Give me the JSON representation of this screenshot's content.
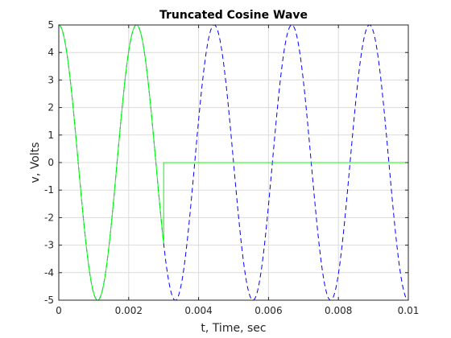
{
  "chart_data": {
    "type": "line",
    "title": "Truncated Cosine Wave",
    "xlabel": "t, Time, sec",
    "ylabel": "v, Volts",
    "xlim": [
      0,
      0.01
    ],
    "ylim": [
      -5,
      5
    ],
    "xticks": [
      0,
      0.002,
      0.004,
      0.006,
      0.008,
      0.01
    ],
    "xtick_labels": [
      "0",
      "0.002",
      "0.004",
      "0.006",
      "0.008",
      "0.01"
    ],
    "yticks": [
      -5,
      -4,
      -3,
      -2,
      -1,
      0,
      1,
      2,
      3,
      4,
      5
    ],
    "ytick_labels": [
      "-5",
      "-4",
      "-3",
      "-2",
      "-1",
      "0",
      "1",
      "2",
      "3",
      "4",
      "5"
    ],
    "grid": true,
    "series": [
      {
        "style": "dashed",
        "color": "#0000ff",
        "function": "v = 5 cos(2*pi*450*t)",
        "amplitude": 5,
        "frequency_hz": 450,
        "t_range": [
          0,
          0.01
        ]
      },
      {
        "style": "solid",
        "color": "#00ff00",
        "function": "v = 5 cos(2*pi*450*t) for t < 0.003, else 0",
        "amplitude": 5,
        "frequency_hz": 450,
        "cutoff_t": 0.003,
        "value_after_cutoff": 0,
        "t_range": [
          0,
          0.01
        ]
      }
    ]
  }
}
